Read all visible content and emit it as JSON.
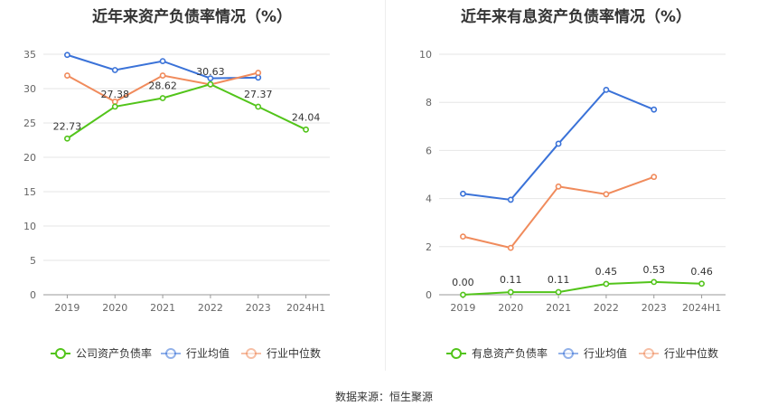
{
  "source": "数据来源：恒生聚源",
  "colors": {
    "company": "#52c41a",
    "avg": "#3a72d8",
    "median": "#f08b5c"
  },
  "chart_data": [
    {
      "type": "line",
      "title": "近年来资产负债率情况（%）",
      "categories": [
        "2019",
        "2020",
        "2021",
        "2022",
        "2023",
        "2024H1"
      ],
      "ylim": [
        0,
        35
      ],
      "yticks": [
        0,
        5,
        10,
        15,
        20,
        25,
        30,
        35
      ],
      "grid": true,
      "legend": "bottom",
      "series": [
        {
          "name": "公司资产负债率",
          "key": "company",
          "values": [
            22.73,
            27.38,
            28.62,
            30.63,
            27.37,
            24.04
          ],
          "labels": [
            "22.73",
            "27.38",
            "28.62",
            "30.63",
            "27.37",
            "24.04"
          ]
        },
        {
          "name": "行业均值",
          "key": "avg",
          "values": [
            34.9,
            32.7,
            34.0,
            31.5,
            31.6,
            null
          ]
        },
        {
          "name": "行业中位数",
          "key": "median",
          "values": [
            31.9,
            28.1,
            31.9,
            30.6,
            32.3,
            null
          ]
        }
      ]
    },
    {
      "type": "line",
      "title": "近年来有息资产负债率情况（%）",
      "categories": [
        "2019",
        "2020",
        "2021",
        "2022",
        "2023",
        "2024H1"
      ],
      "ylim": [
        0,
        10
      ],
      "yticks": [
        0,
        2,
        4,
        6,
        8,
        10
      ],
      "grid": true,
      "legend": "bottom",
      "series": [
        {
          "name": "有息资产负债率",
          "key": "company",
          "values": [
            0.0,
            0.11,
            0.11,
            0.45,
            0.53,
            0.46
          ],
          "labels": [
            "0.00",
            "0.11",
            "0.11",
            "0.45",
            "0.53",
            "0.46"
          ]
        },
        {
          "name": "行业均值",
          "key": "avg",
          "values": [
            4.2,
            3.95,
            6.28,
            8.52,
            7.7,
            null
          ]
        },
        {
          "name": "行业中位数",
          "key": "median",
          "values": [
            2.42,
            1.95,
            4.5,
            4.18,
            4.9,
            null
          ]
        }
      ]
    }
  ]
}
